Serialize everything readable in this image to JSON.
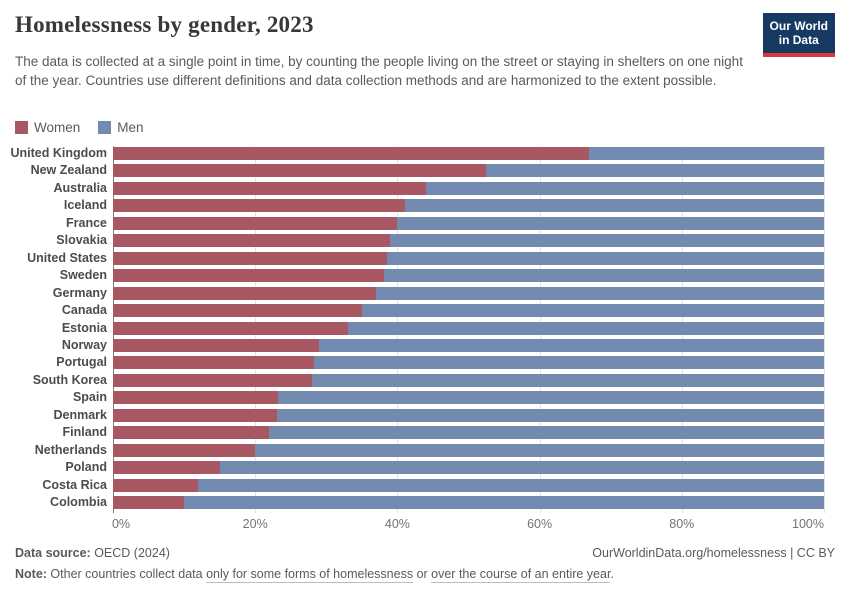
{
  "chart_data": {
    "type": "bar",
    "stacked": true,
    "orientation": "horizontal",
    "title": "Homelessness by gender, 2023",
    "subtitle": "The data is collected at a single point in time, by counting the people living on the street or staying in shelters on one night of the year. Countries use different definitions and data collection methods and are harmonized to the extent possible.",
    "categories": [
      "United Kingdom",
      "New Zealand",
      "Australia",
      "Iceland",
      "France",
      "Slovakia",
      "United States",
      "Sweden",
      "Germany",
      "Canada",
      "Estonia",
      "Norway",
      "Portugal",
      "South Korea",
      "Spain",
      "Denmark",
      "Finland",
      "Netherlands",
      "Poland",
      "Costa Rica",
      "Colombia"
    ],
    "series": [
      {
        "name": "Women",
        "color": "#a85862",
        "values": [
          67,
          52.5,
          44,
          41,
          40,
          39,
          38.5,
          38.1,
          37,
          35,
          33,
          29,
          28.2,
          28,
          23.2,
          23,
          22,
          20,
          15,
          12,
          10
        ]
      },
      {
        "name": "Men",
        "color": "#7289b0",
        "values": [
          33,
          47.5,
          56,
          59,
          60,
          61,
          61.5,
          61.9,
          63,
          65,
          67,
          71,
          71.8,
          72,
          76.8,
          77,
          78,
          80,
          85,
          88,
          90
        ]
      }
    ],
    "x_ticks": [
      {
        "label": "0%",
        "value": 0
      },
      {
        "label": "20%",
        "value": 20
      },
      {
        "label": "40%",
        "value": 40
      },
      {
        "label": "60%",
        "value": 60
      },
      {
        "label": "80%",
        "value": 80
      },
      {
        "label": "100%",
        "value": 100
      }
    ],
    "xlim": [
      0,
      100
    ],
    "xlabel": "",
    "ylabel": "",
    "grid": true,
    "legend_position": "top-left",
    "unit": "%"
  },
  "logo": {
    "line1": "Our World",
    "line2": "in Data",
    "bg_color": "#173a63",
    "accent_color": "#dc3a3a"
  },
  "footer": {
    "source_label": "Data source:",
    "source_value": " OECD (2024)",
    "link": "OurWorldinData.org/homelessness",
    "separator": " | ",
    "license": "CC BY",
    "note_label": "Note:",
    "note_pre": " Other countries collect data ",
    "note_u1": "only for some forms of homelessness",
    "note_mid": " or ",
    "note_u2": "over the course of an entire year",
    "note_post": "."
  }
}
